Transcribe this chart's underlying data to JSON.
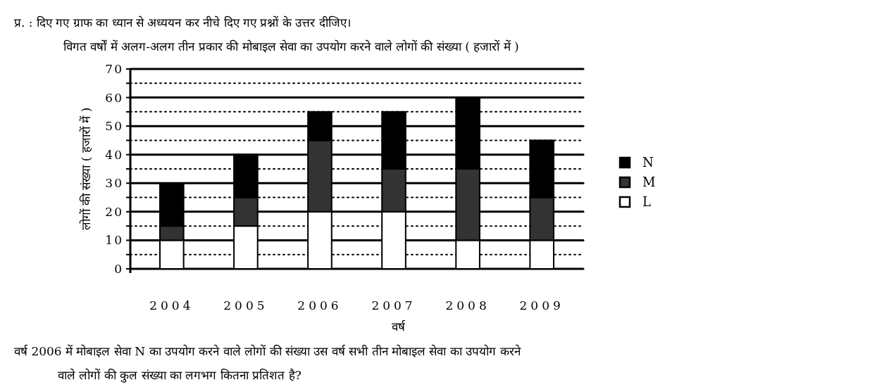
{
  "chart_data": {
    "type": "bar",
    "stacked": true,
    "title": "प्र.  : दिए गए ग्राफ का ध्यान से अध्ययन कर नीचे दिए गए प्रश्नों के उत्तर दीजिए।",
    "subtitle": "विगत वर्षों में अलग-अलग तीन प्रकार की मोबाइल सेवा का उपयोग करने वाले लोगों की संख्या ( हजारों में )",
    "xlabel": "वर्ष",
    "ylabel": "लोगों की संख्या ( हजारों में )",
    "categories": [
      "2004",
      "2005",
      "2006",
      "2007",
      "2008",
      "2009"
    ],
    "series": [
      {
        "name": "L",
        "color": "#ffffff",
        "values": [
          10,
          15,
          20,
          20,
          10,
          10
        ]
      },
      {
        "name": "M",
        "color": "#333333",
        "values": [
          5,
          10,
          25,
          15,
          25,
          15
        ]
      },
      {
        "name": "N",
        "color": "#000000",
        "values": [
          15,
          15,
          10,
          20,
          25,
          20
        ]
      }
    ],
    "ylim": [
      0,
      70
    ],
    "yticks": [
      0,
      {
        "value": 5,
        "label": null
      },
      10,
      {
        "value": 15,
        "label": null
      },
      20,
      {
        "value": 25,
        "label": null
      },
      30,
      {
        "value": 35,
        "label": null
      },
      40,
      {
        "value": 45,
        "label": null
      },
      50,
      {
        "value": 55,
        "label": null
      },
      60,
      {
        "value": 65,
        "label": null
      },
      70
    ],
    "grid": "y",
    "legend": "right",
    "annotations": [
      "वर्ष 2006 में मोबाइल सेवा N का उपयोग करने वाले लोगों की संख्या उस वर्ष सभी तीन मोबाइल सेवा का उपयोग करने",
      "वाले लोगों की कुल संख्या का लगभग कितना प्रतिशत है?"
    ]
  }
}
